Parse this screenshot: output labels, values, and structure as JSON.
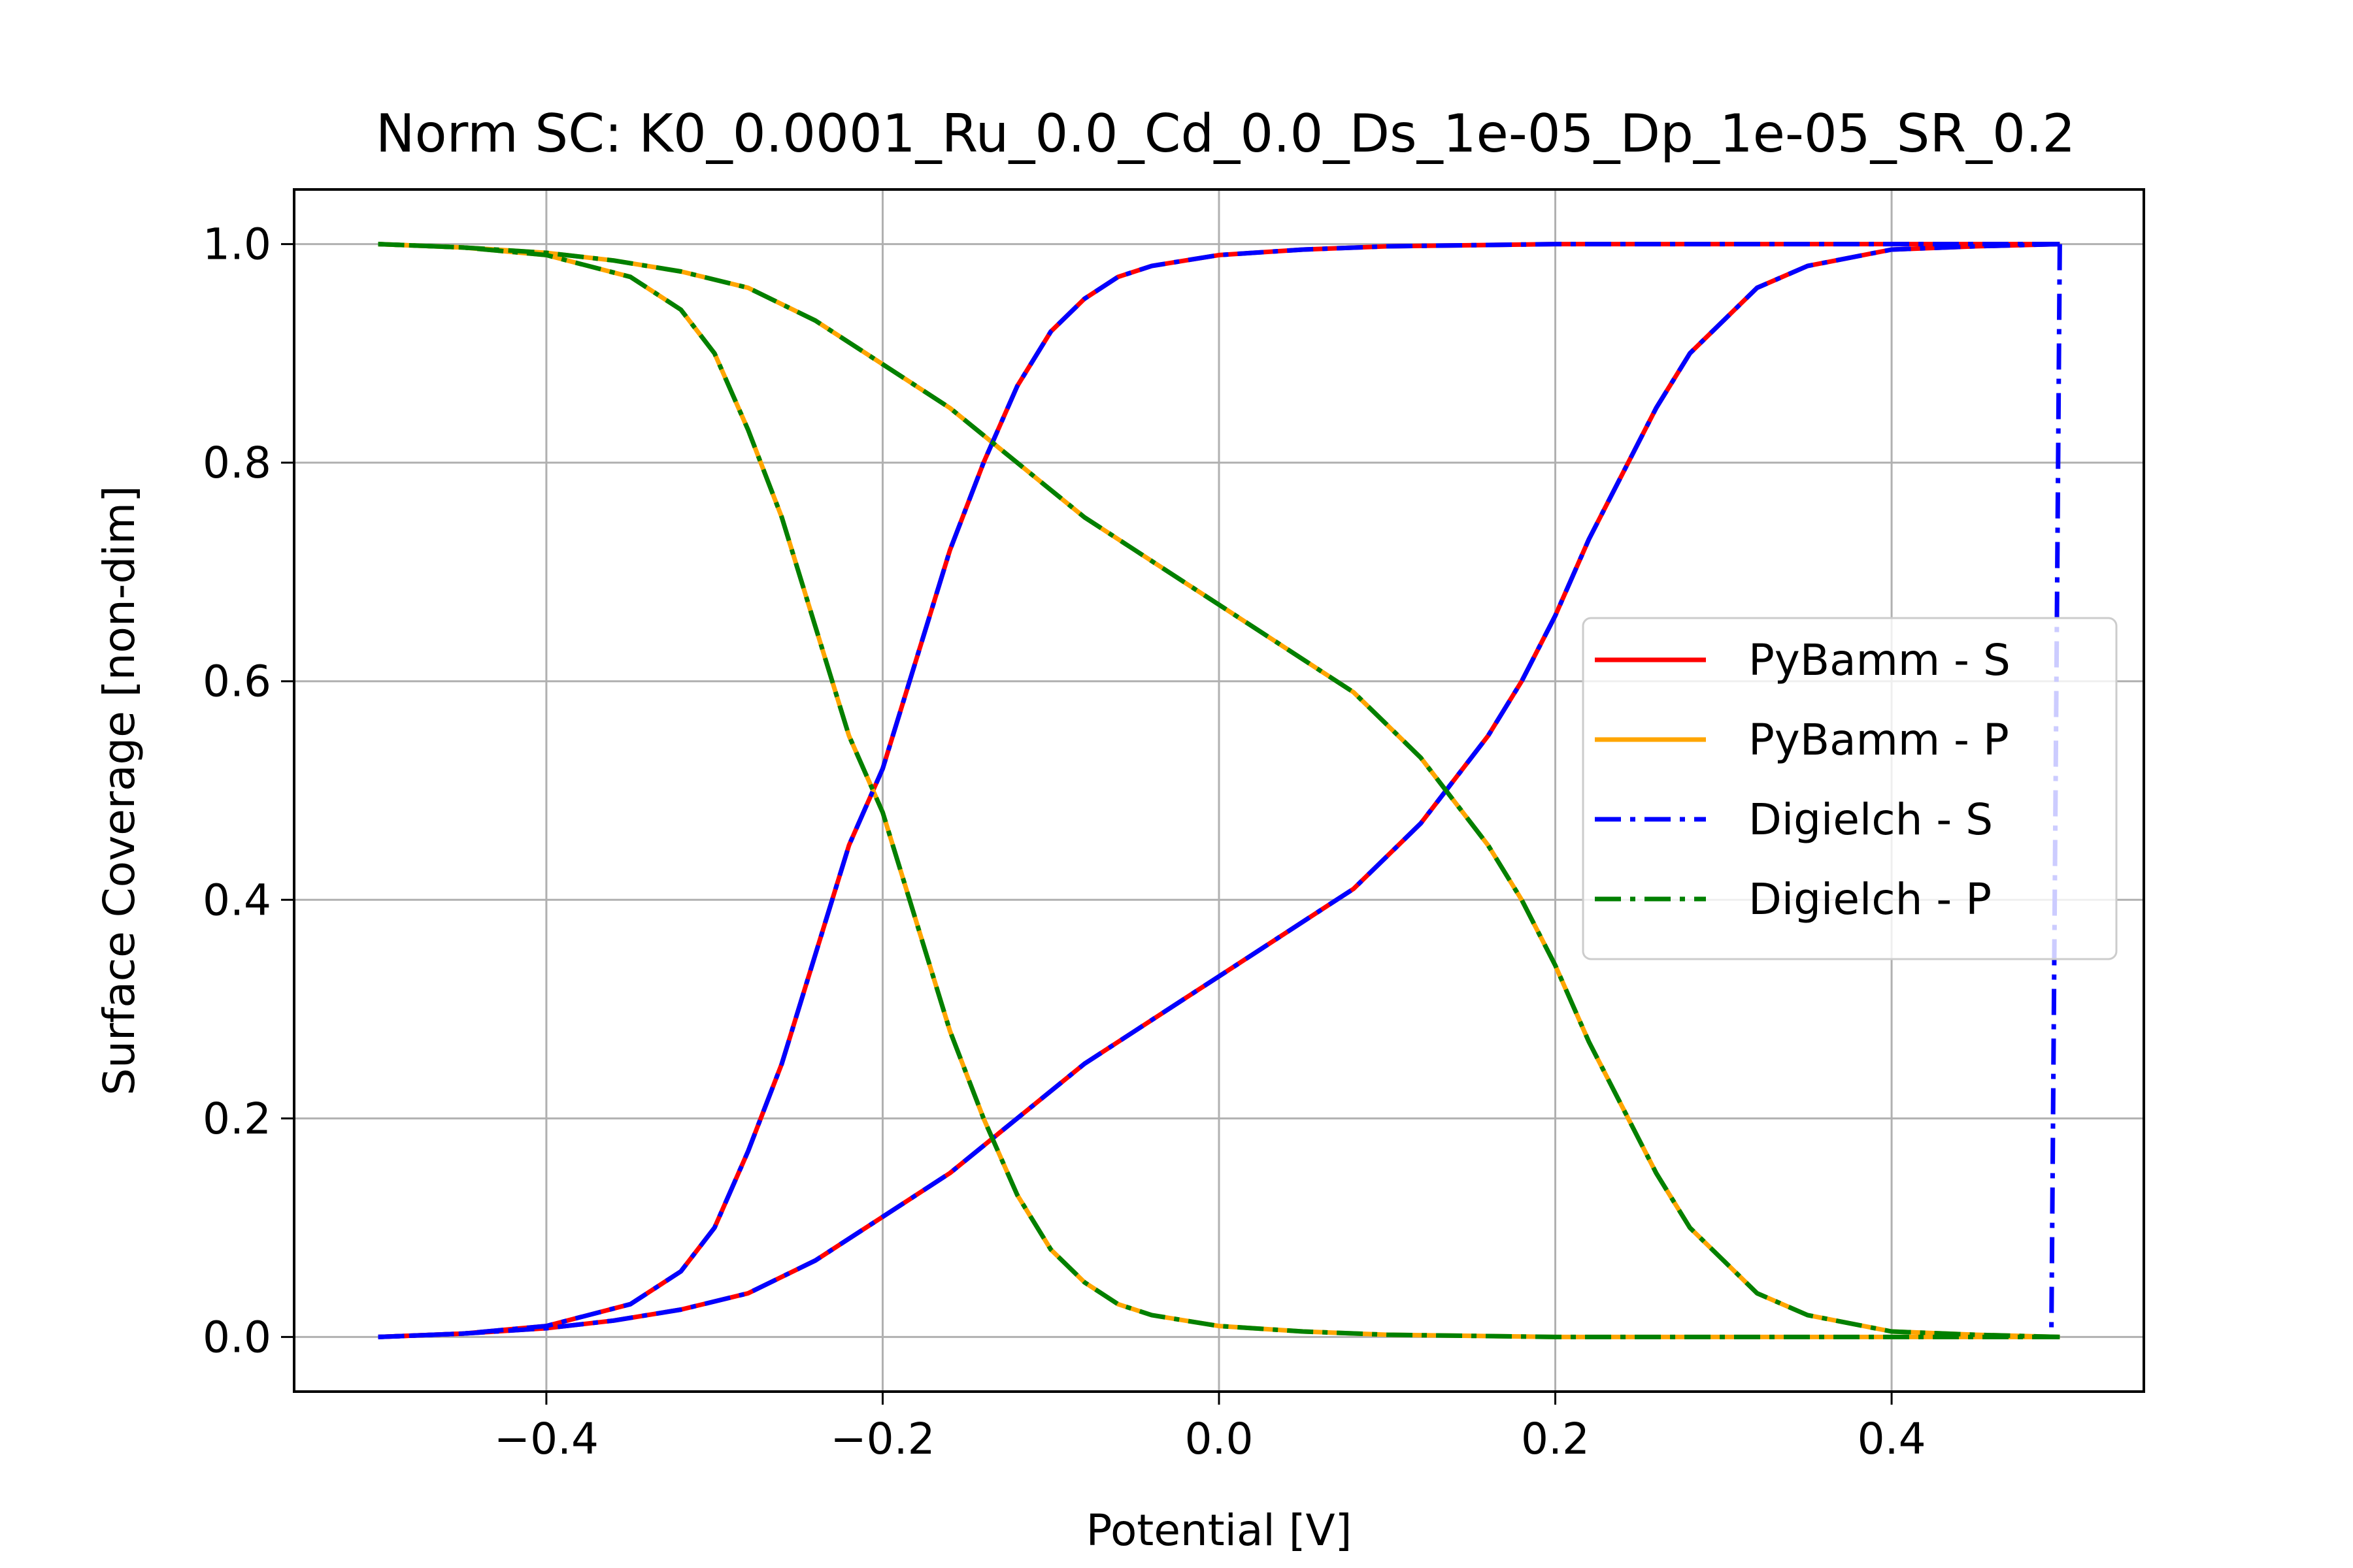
{
  "chart_data": {
    "type": "line",
    "title": "Norm SC: K0_0.0001_Ru_0.0_Cd_0.0_Ds_1e-05_Dp_1e-05_SR_0.2",
    "xlabel": "Potential [V]",
    "ylabel": "Surface Coverage [non-dim]",
    "xlim": [
      -0.55,
      0.55
    ],
    "ylim": [
      -0.05,
      1.05
    ],
    "xticks": [
      -0.4,
      -0.2,
      0.0,
      0.2,
      0.4
    ],
    "xtick_labels": [
      "−0.4",
      "−0.2",
      "0.0",
      "0.2",
      "0.4"
    ],
    "yticks": [
      0.0,
      0.2,
      0.4,
      0.6,
      0.8,
      1.0
    ],
    "ytick_labels": [
      "0.0",
      "0.2",
      "0.4",
      "0.6",
      "0.8",
      "1.0"
    ],
    "grid": true,
    "legend_position": "center-right",
    "series": [
      {
        "name": "PyBamm - S",
        "color": "#ff0000",
        "style": "solid",
        "segments": [
          {
            "x": [
              -0.5,
              -0.45,
              -0.4,
              -0.35,
              -0.32,
              -0.3,
              -0.28,
              -0.26,
              -0.24,
              -0.22,
              -0.2,
              -0.18,
              -0.16,
              -0.14,
              -0.12,
              -0.1,
              -0.08,
              -0.06,
              -0.04,
              -0.02,
              0.0,
              0.05,
              0.1,
              0.2,
              0.3,
              0.4,
              0.5
            ],
            "y": [
              0.0,
              0.003,
              0.01,
              0.03,
              0.06,
              0.1,
              0.17,
              0.25,
              0.35,
              0.45,
              0.52,
              0.62,
              0.72,
              0.8,
              0.87,
              0.92,
              0.95,
              0.97,
              0.98,
              0.985,
              0.99,
              0.995,
              0.998,
              1.0,
              1.0,
              1.0,
              1.0
            ]
          },
          {
            "x": [
              0.5,
              0.45,
              0.4,
              0.35,
              0.32,
              0.3,
              0.28,
              0.26,
              0.24,
              0.22,
              0.2,
              0.18,
              0.16,
              0.14,
              0.12,
              0.1,
              0.08,
              0.05,
              0.02,
              0.0,
              -0.02,
              -0.05,
              -0.08,
              -0.12,
              -0.16,
              -0.2,
              -0.24,
              -0.28,
              -0.32,
              -0.36,
              -0.4,
              -0.45,
              -0.5
            ],
            "y": [
              1.0,
              0.998,
              0.995,
              0.98,
              0.96,
              0.93,
              0.9,
              0.85,
              0.79,
              0.73,
              0.66,
              0.6,
              0.55,
              0.51,
              0.47,
              0.44,
              0.41,
              0.38,
              0.35,
              0.33,
              0.31,
              0.28,
              0.25,
              0.2,
              0.15,
              0.11,
              0.07,
              0.04,
              0.025,
              0.015,
              0.008,
              0.003,
              0.0
            ]
          }
        ]
      },
      {
        "name": "PyBamm - P",
        "color": "#ffa500",
        "style": "solid",
        "segments": [
          {
            "x": [
              -0.5,
              -0.45,
              -0.4,
              -0.35,
              -0.32,
              -0.3,
              -0.28,
              -0.26,
              -0.24,
              -0.22,
              -0.2,
              -0.18,
              -0.16,
              -0.14,
              -0.12,
              -0.1,
              -0.08,
              -0.06,
              -0.04,
              -0.02,
              0.0,
              0.05,
              0.1,
              0.2,
              0.3,
              0.4,
              0.5
            ],
            "y": [
              1.0,
              0.997,
              0.99,
              0.97,
              0.94,
              0.9,
              0.83,
              0.75,
              0.65,
              0.55,
              0.48,
              0.38,
              0.28,
              0.2,
              0.13,
              0.08,
              0.05,
              0.03,
              0.02,
              0.015,
              0.01,
              0.005,
              0.002,
              0.0,
              0.0,
              0.0,
              0.0
            ]
          },
          {
            "x": [
              0.5,
              0.45,
              0.4,
              0.35,
              0.32,
              0.3,
              0.28,
              0.26,
              0.24,
              0.22,
              0.2,
              0.18,
              0.16,
              0.14,
              0.12,
              0.1,
              0.08,
              0.05,
              0.02,
              0.0,
              -0.02,
              -0.05,
              -0.08,
              -0.12,
              -0.16,
              -0.2,
              -0.24,
              -0.28,
              -0.32,
              -0.36,
              -0.4,
              -0.45,
              -0.5
            ],
            "y": [
              0.0,
              0.002,
              0.005,
              0.02,
              0.04,
              0.07,
              0.1,
              0.15,
              0.21,
              0.27,
              0.34,
              0.4,
              0.45,
              0.49,
              0.53,
              0.56,
              0.59,
              0.62,
              0.65,
              0.67,
              0.69,
              0.72,
              0.75,
              0.8,
              0.85,
              0.89,
              0.93,
              0.96,
              0.975,
              0.985,
              0.992,
              0.997,
              1.0
            ]
          }
        ]
      },
      {
        "name": "Digielch - S",
        "color": "#0000ff",
        "style": "dashdot",
        "segments": [
          {
            "x": [
              -0.5,
              -0.45,
              -0.4,
              -0.35,
              -0.32,
              -0.3,
              -0.28,
              -0.26,
              -0.24,
              -0.22,
              -0.2,
              -0.18,
              -0.16,
              -0.14,
              -0.12,
              -0.1,
              -0.08,
              -0.06,
              -0.04,
              -0.02,
              0.0,
              0.05,
              0.1,
              0.2,
              0.3,
              0.4,
              0.5
            ],
            "y": [
              0.0,
              0.003,
              0.01,
              0.03,
              0.06,
              0.1,
              0.17,
              0.25,
              0.35,
              0.45,
              0.52,
              0.62,
              0.72,
              0.8,
              0.87,
              0.92,
              0.95,
              0.97,
              0.98,
              0.985,
              0.99,
              0.995,
              0.998,
              1.0,
              1.0,
              1.0,
              1.0
            ]
          },
          {
            "x": [
              0.5,
              0.495
            ],
            "y": [
              1.0,
              0.0
            ]
          },
          {
            "x": [
              0.5,
              0.45,
              0.4,
              0.35,
              0.32,
              0.3,
              0.28,
              0.26,
              0.24,
              0.22,
              0.2,
              0.18,
              0.16,
              0.14,
              0.12,
              0.1,
              0.08,
              0.05,
              0.02,
              0.0,
              -0.02,
              -0.05,
              -0.08,
              -0.12,
              -0.16,
              -0.2,
              -0.24,
              -0.28,
              -0.32,
              -0.36,
              -0.4,
              -0.45,
              -0.5
            ],
            "y": [
              1.0,
              0.998,
              0.995,
              0.98,
              0.96,
              0.93,
              0.9,
              0.85,
              0.79,
              0.73,
              0.66,
              0.6,
              0.55,
              0.51,
              0.47,
              0.44,
              0.41,
              0.38,
              0.35,
              0.33,
              0.31,
              0.28,
              0.25,
              0.2,
              0.15,
              0.11,
              0.07,
              0.04,
              0.025,
              0.015,
              0.008,
              0.003,
              0.0
            ]
          }
        ]
      },
      {
        "name": "Digielch - P",
        "color": "#008000",
        "style": "dashdot",
        "segments": [
          {
            "x": [
              -0.5,
              -0.45,
              -0.4,
              -0.35,
              -0.32,
              -0.3,
              -0.28,
              -0.26,
              -0.24,
              -0.22,
              -0.2,
              -0.18,
              -0.16,
              -0.14,
              -0.12,
              -0.1,
              -0.08,
              -0.06,
              -0.04,
              -0.02,
              0.0,
              0.05,
              0.1,
              0.2,
              0.3,
              0.4,
              0.5
            ],
            "y": [
              1.0,
              0.997,
              0.99,
              0.97,
              0.94,
              0.9,
              0.83,
              0.75,
              0.65,
              0.55,
              0.48,
              0.38,
              0.28,
              0.2,
              0.13,
              0.08,
              0.05,
              0.03,
              0.02,
              0.015,
              0.01,
              0.005,
              0.002,
              0.0,
              0.0,
              0.0,
              0.0
            ]
          },
          {
            "x": [
              0.5,
              0.45,
              0.4,
              0.35,
              0.32,
              0.3,
              0.28,
              0.26,
              0.24,
              0.22,
              0.2,
              0.18,
              0.16,
              0.14,
              0.12,
              0.1,
              0.08,
              0.05,
              0.02,
              0.0,
              -0.02,
              -0.05,
              -0.08,
              -0.12,
              -0.16,
              -0.2,
              -0.24,
              -0.28,
              -0.32,
              -0.36,
              -0.4,
              -0.45,
              -0.5
            ],
            "y": [
              0.0,
              0.002,
              0.005,
              0.02,
              0.04,
              0.07,
              0.1,
              0.15,
              0.21,
              0.27,
              0.34,
              0.4,
              0.45,
              0.49,
              0.53,
              0.56,
              0.59,
              0.62,
              0.65,
              0.67,
              0.69,
              0.72,
              0.75,
              0.8,
              0.85,
              0.89,
              0.93,
              0.96,
              0.975,
              0.985,
              0.992,
              0.997,
              1.0
            ]
          }
        ]
      }
    ]
  }
}
